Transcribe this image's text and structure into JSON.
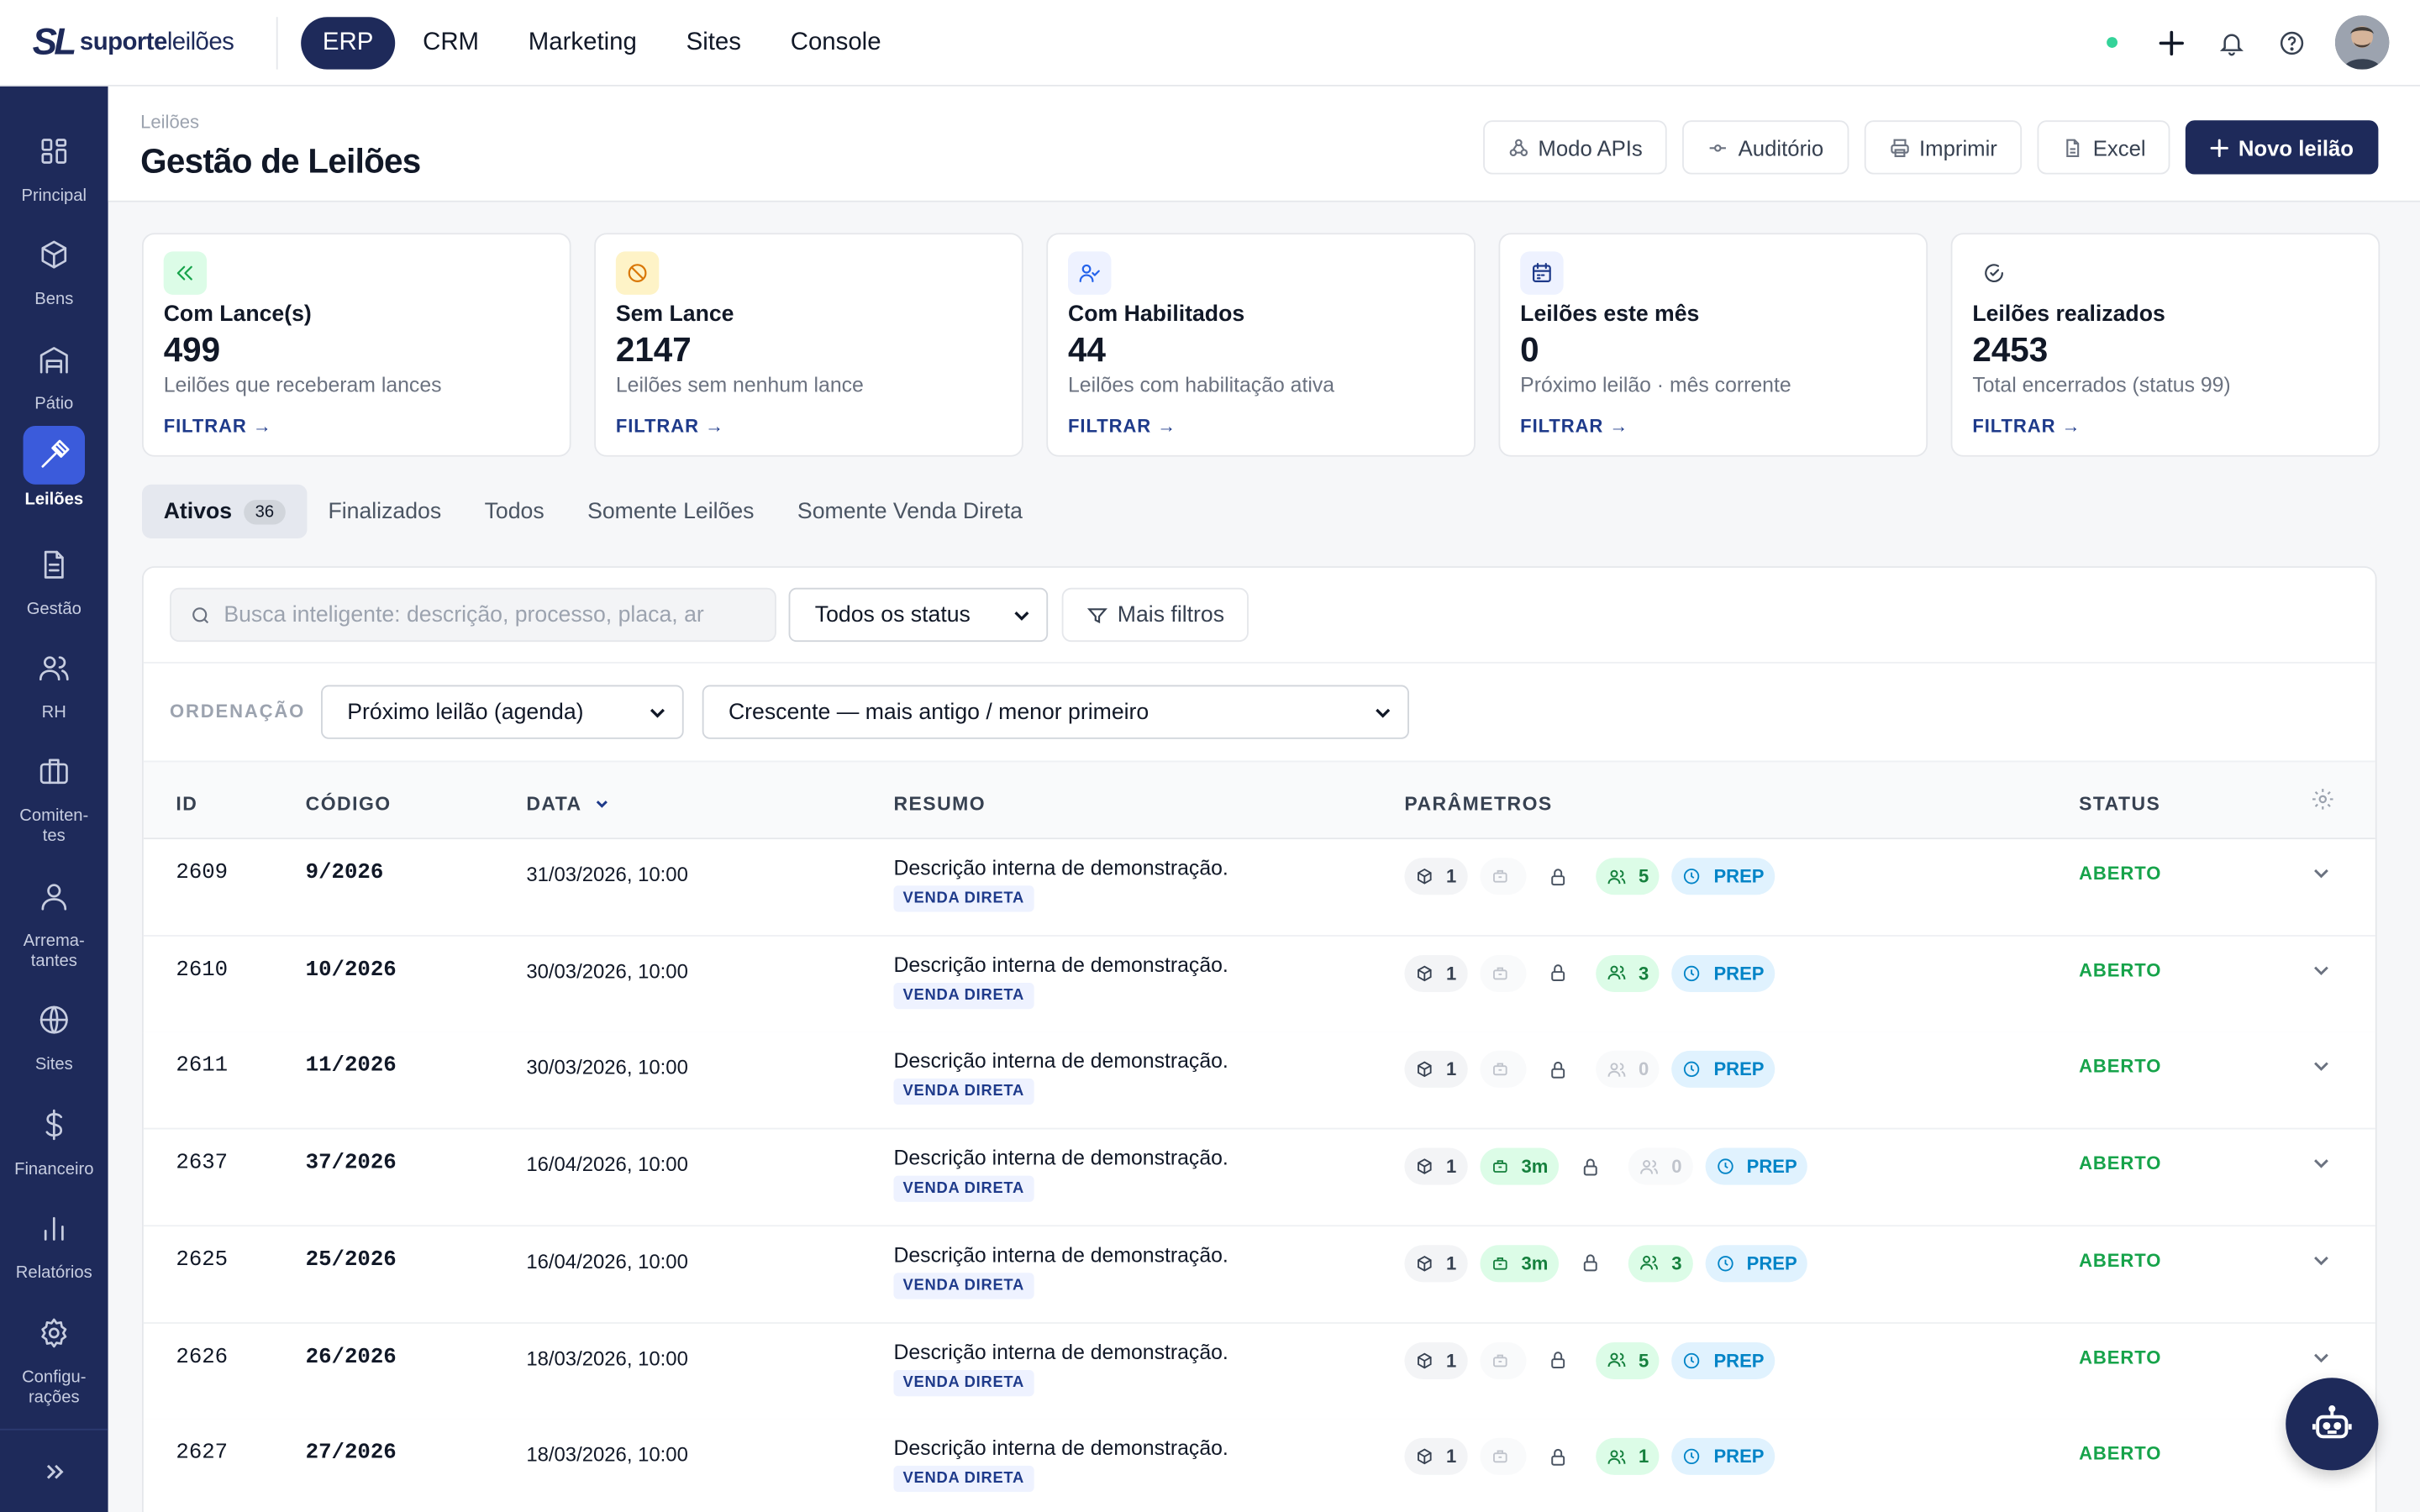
{
  "brand": {
    "mark": "SL",
    "name_bold": "suporte",
    "name_light": "leilões"
  },
  "topnav": {
    "items": [
      {
        "label": "ERP",
        "active": true
      },
      {
        "label": "CRM"
      },
      {
        "label": "Marketing"
      },
      {
        "label": "Sites"
      },
      {
        "label": "Console"
      }
    ]
  },
  "sidebar": {
    "items": [
      {
        "label": "Principal",
        "icon": "grid-icon"
      },
      {
        "label": "Bens",
        "icon": "box-icon"
      },
      {
        "label": "Pátio",
        "icon": "warehouse-icon"
      },
      {
        "label": "Leilões",
        "icon": "gavel-icon",
        "active": true
      },
      {
        "label": "Gestão",
        "icon": "document-icon"
      },
      {
        "label": "RH",
        "icon": "users-icon"
      },
      {
        "label": "Comiten-\ntes",
        "icon": "briefcase-icon"
      },
      {
        "label": "Arrema-\ntantes",
        "icon": "user-icon"
      },
      {
        "label": "Sites",
        "icon": "globe-icon"
      },
      {
        "label": "Financeiro",
        "icon": "dollar-icon"
      },
      {
        "label": "Relatórios",
        "icon": "bar-chart-icon"
      },
      {
        "label": "Configu-\nrações",
        "icon": "gear-icon"
      }
    ]
  },
  "header": {
    "breadcrumb": "Leilões",
    "title": "Gestão de Leilões",
    "buttons": {
      "apis": "Modo APIs",
      "auditorio": "Auditório",
      "imprimir": "Imprimir",
      "excel": "Excel",
      "novo": "Novo leilão"
    }
  },
  "cards": [
    {
      "title": "Com Lance(s)",
      "value": "499",
      "desc": "Leilões que receberam lances",
      "link": "FILTRAR →",
      "color": "#16a34a",
      "bg": "#dcfce7"
    },
    {
      "title": "Sem Lance",
      "value": "2147",
      "desc": "Leilões sem nenhum lance",
      "link": "FILTRAR →",
      "color": "#d97706",
      "bg": "#fef3c7"
    },
    {
      "title": "Com Habilitados",
      "value": "44",
      "desc": "Leilões com habilitação ativa",
      "link": "FILTRAR →",
      "color": "#2563eb",
      "bg": "#eef2ff"
    },
    {
      "title": "Leilões este mês",
      "value": "0",
      "desc": "Próximo leilão · mês corrente",
      "link": "FILTRAR →",
      "color": "#1e3a8a",
      "bg": "#eef2ff"
    },
    {
      "title": "Leilões realizados",
      "value": "2453",
      "desc": "Total encerrados (status 99)",
      "link": "FILTRAR →",
      "color": "#374151",
      "bg": "#ffffff"
    }
  ],
  "tabs": [
    {
      "label": "Ativos",
      "count": "36",
      "active": true
    },
    {
      "label": "Finalizados"
    },
    {
      "label": "Todos"
    },
    {
      "label": "Somente Leilões"
    },
    {
      "label": "Somente Venda Direta"
    }
  ],
  "filters": {
    "search_placeholder": "Busca inteligente: descrição, processo, placa, ar",
    "status_select": "Todos os status",
    "more_filters": "Mais filtros",
    "ordering_label": "ORDENAÇÃO",
    "order_by": "Próximo leilão (agenda)",
    "direction": "Crescente — mais antigo / menor primeiro"
  },
  "table": {
    "headers": {
      "id": "ID",
      "codigo": "CÓDIGO",
      "data": "DATA",
      "resumo": "RESUMO",
      "parametros": "PARÂMETROS",
      "status": "STATUS"
    },
    "rows": [
      {
        "id": "2609",
        "codigo": "9/2026",
        "data": "31/03/2026, 10:00",
        "resumo": "Descrição interna de demonstração.",
        "tag": "VENDA DIRETA",
        "bens": "1",
        "time": "",
        "hab": "5",
        "hab_active": true,
        "prep": "PREP",
        "status": "ABERTO"
      },
      {
        "id": "2610",
        "codigo": "10/2026",
        "data": "30/03/2026, 10:00",
        "resumo": "Descrição interna de demonstração.",
        "tag": "VENDA DIRETA",
        "bens": "1",
        "time": "",
        "hab": "3",
        "hab_active": true,
        "prep": "PREP",
        "status": "ABERTO"
      },
      {
        "id": "2611",
        "codigo": "11/2026",
        "data": "30/03/2026, 10:00",
        "resumo": "Descrição interna de demonstração.",
        "tag": "VENDA DIRETA",
        "bens": "1",
        "time": "",
        "hab": "0",
        "hab_active": false,
        "prep": "PREP",
        "status": "ABERTO"
      },
      {
        "id": "2637",
        "codigo": "37/2026",
        "data": "16/04/2026, 10:00",
        "resumo": "Descrição interna de demonstração.",
        "tag": "VENDA DIRETA",
        "bens": "1",
        "time": "3m",
        "hab": "0",
        "hab_active": false,
        "prep": "PREP",
        "status": "ABERTO"
      },
      {
        "id": "2625",
        "codigo": "25/2026",
        "data": "16/04/2026, 10:00",
        "resumo": "Descrição interna de demonstração.",
        "tag": "VENDA DIRETA",
        "bens": "1",
        "time": "3m",
        "hab": "3",
        "hab_active": true,
        "prep": "PREP",
        "status": "ABERTO"
      },
      {
        "id": "2626",
        "codigo": "26/2026",
        "data": "18/03/2026, 10:00",
        "resumo": "Descrição interna de demonstração.",
        "tag": "VENDA DIRETA",
        "bens": "1",
        "time": "",
        "hab": "5",
        "hab_active": true,
        "prep": "PREP",
        "status": "ABERTO"
      },
      {
        "id": "2627",
        "codigo": "27/2026",
        "data": "18/03/2026, 10:00",
        "resumo": "Descrição interna de demonstração.",
        "tag": "VENDA DIRETA",
        "bens": "1",
        "time": "",
        "hab": "1",
        "hab_active": true,
        "prep": "PREP",
        "status": "ABERTO"
      }
    ]
  },
  "colors": {
    "navy": "#1e2a5a",
    "accent": "#3b5bdb",
    "green": "#16a34a",
    "blue": "#0284c7"
  }
}
